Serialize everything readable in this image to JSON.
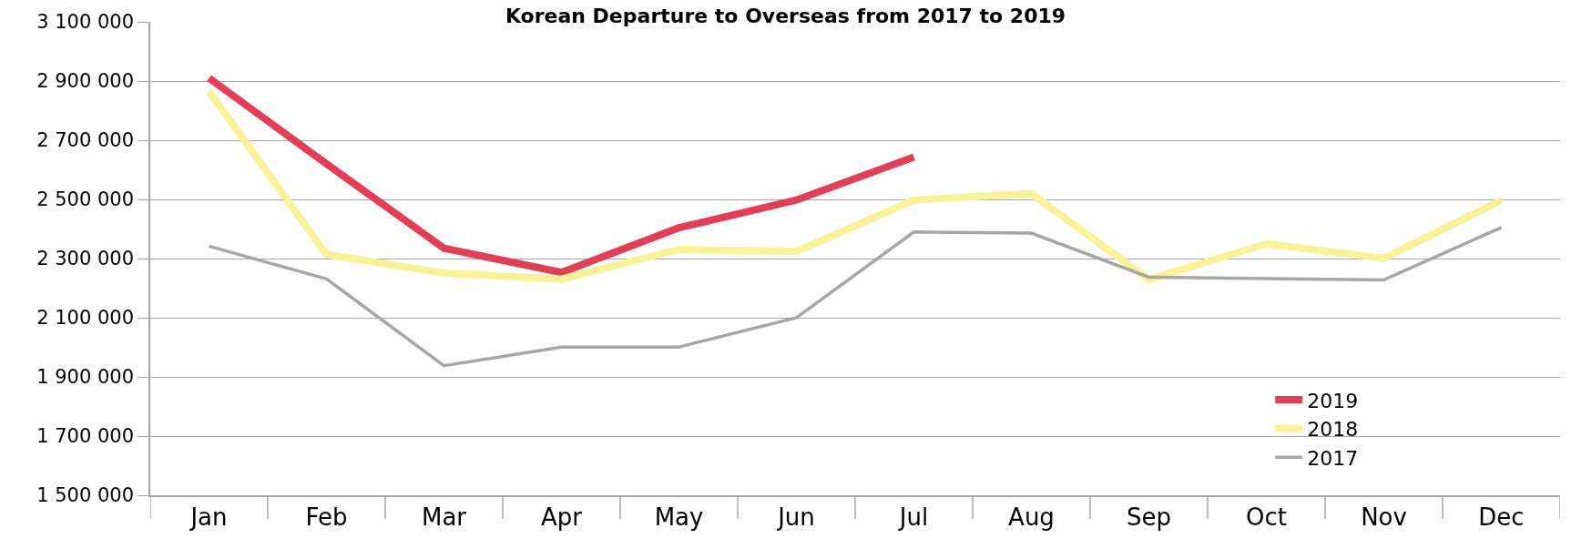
{
  "chart_data": {
    "type": "line",
    "title": "Korean Departure to Overseas from 2017 to 2019",
    "categories": [
      "Jan",
      "Feb",
      "Mar",
      "Apr",
      "May",
      "Jun",
      "Jul",
      "Aug",
      "Sep",
      "Oct",
      "Nov",
      "Dec"
    ],
    "series": [
      {
        "name": "2019",
        "color": "#e03f57",
        "values": [
          2910000,
          2620000,
          2335000,
          2253000,
          2404000,
          2498000,
          2643000,
          null,
          null,
          null,
          null,
          null
        ]
      },
      {
        "name": "2018",
        "color": "#f9f29b",
        "values": [
          2865000,
          2314000,
          2251000,
          2230000,
          2331000,
          2324000,
          2498000,
          2520000,
          2229000,
          2350000,
          2301000,
          2497000
        ]
      },
      {
        "name": "2017",
        "color": "#a6a6a6",
        "values": [
          2342000,
          2231000,
          1938000,
          2001000,
          2001000,
          2100000,
          2390000,
          2386000,
          2237000,
          2232000,
          2228000,
          2405000
        ]
      }
    ],
    "ylim": [
      1500000,
      3100000
    ],
    "yticks": [
      {
        "value": 1500000,
        "label": "1 500 000"
      },
      {
        "value": 1700000,
        "label": "1 700 000"
      },
      {
        "value": 1900000,
        "label": "1 900 000"
      },
      {
        "value": 2100000,
        "label": "2 100 000"
      },
      {
        "value": 2300000,
        "label": "2 300 000"
      },
      {
        "value": 2500000,
        "label": "2 500 000"
      },
      {
        "value": 2700000,
        "label": "2 700 000"
      },
      {
        "value": 2900000,
        "label": "2 900 000"
      },
      {
        "value": 3100000,
        "label": "3 100 000"
      }
    ],
    "grid": "y",
    "legend": "bottom right",
    "marker": "none",
    "line_style": "solid"
  }
}
